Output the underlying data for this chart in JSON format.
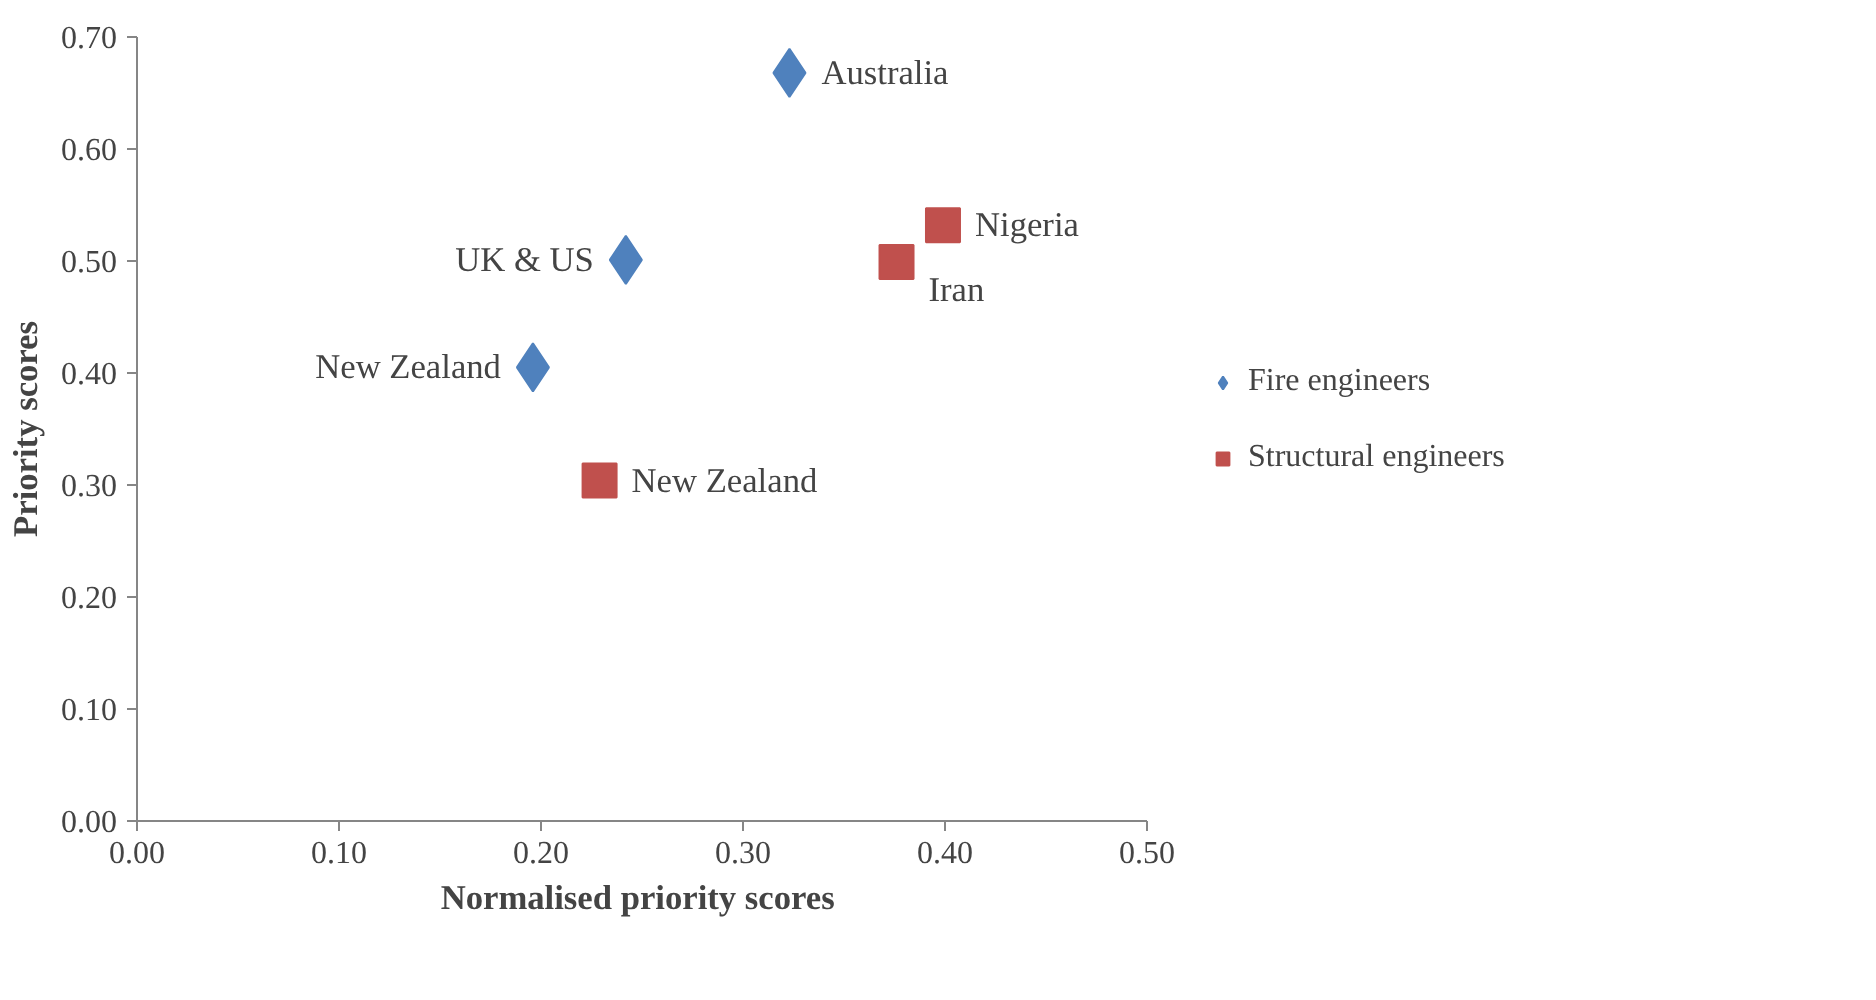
{
  "chart_data": {
    "type": "scatter",
    "xlabel": "Normalised priority  scores",
    "ylabel": "Priority scores",
    "xlim": [
      0,
      0.5
    ],
    "ylim": [
      0,
      0.7
    ],
    "xticks": [
      {
        "value": 0,
        "label": "0.00"
      },
      {
        "value": 0.1,
        "label": "0.10"
      },
      {
        "value": 0.2,
        "label": "0.20"
      },
      {
        "value": 0.3,
        "label": "0.30"
      },
      {
        "value": 0.4,
        "label": "0.40"
      },
      {
        "value": 0.5,
        "label": "0.50"
      }
    ],
    "yticks": [
      {
        "value": 0,
        "label": "0.00"
      },
      {
        "value": 0.1,
        "label": "0.10"
      },
      {
        "value": 0.2,
        "label": "0.20"
      },
      {
        "value": 0.3,
        "label": "0.30"
      },
      {
        "value": 0.4,
        "label": "0.40"
      },
      {
        "value": 0.5,
        "label": "0.50"
      },
      {
        "value": 0.6,
        "label": "0.60"
      },
      {
        "value": 0.7,
        "label": "0.70"
      }
    ],
    "series": [
      {
        "name": "Fire engineers",
        "color": "#4f81bd",
        "marker": "diamond",
        "x": [
          0.323,
          0.242,
          0.196
        ],
        "values": [
          0.668,
          0.501,
          0.405
        ]
      },
      {
        "name": "Structural engineers",
        "color": "#c0504d",
        "marker": "square",
        "x": [
          0.399,
          0.376,
          0.229
        ],
        "values": [
          0.532,
          0.499,
          0.304
        ]
      }
    ],
    "annotations": [
      {
        "text": "Australia",
        "x": 0.323,
        "y": 0.668
      },
      {
        "text": "UK & US",
        "x": 0.242,
        "y": 0.501
      },
      {
        "text": "New Zealand",
        "x": 0.196,
        "y": 0.405
      },
      {
        "text": "Nigeria",
        "x": 0.399,
        "y": 0.532
      },
      {
        "text": "Iran",
        "x": 0.376,
        "y": 0.499
      },
      {
        "text": "New Zealand",
        "x": 0.229,
        "y": 0.304
      }
    ],
    "grid": false,
    "legend": "right"
  }
}
